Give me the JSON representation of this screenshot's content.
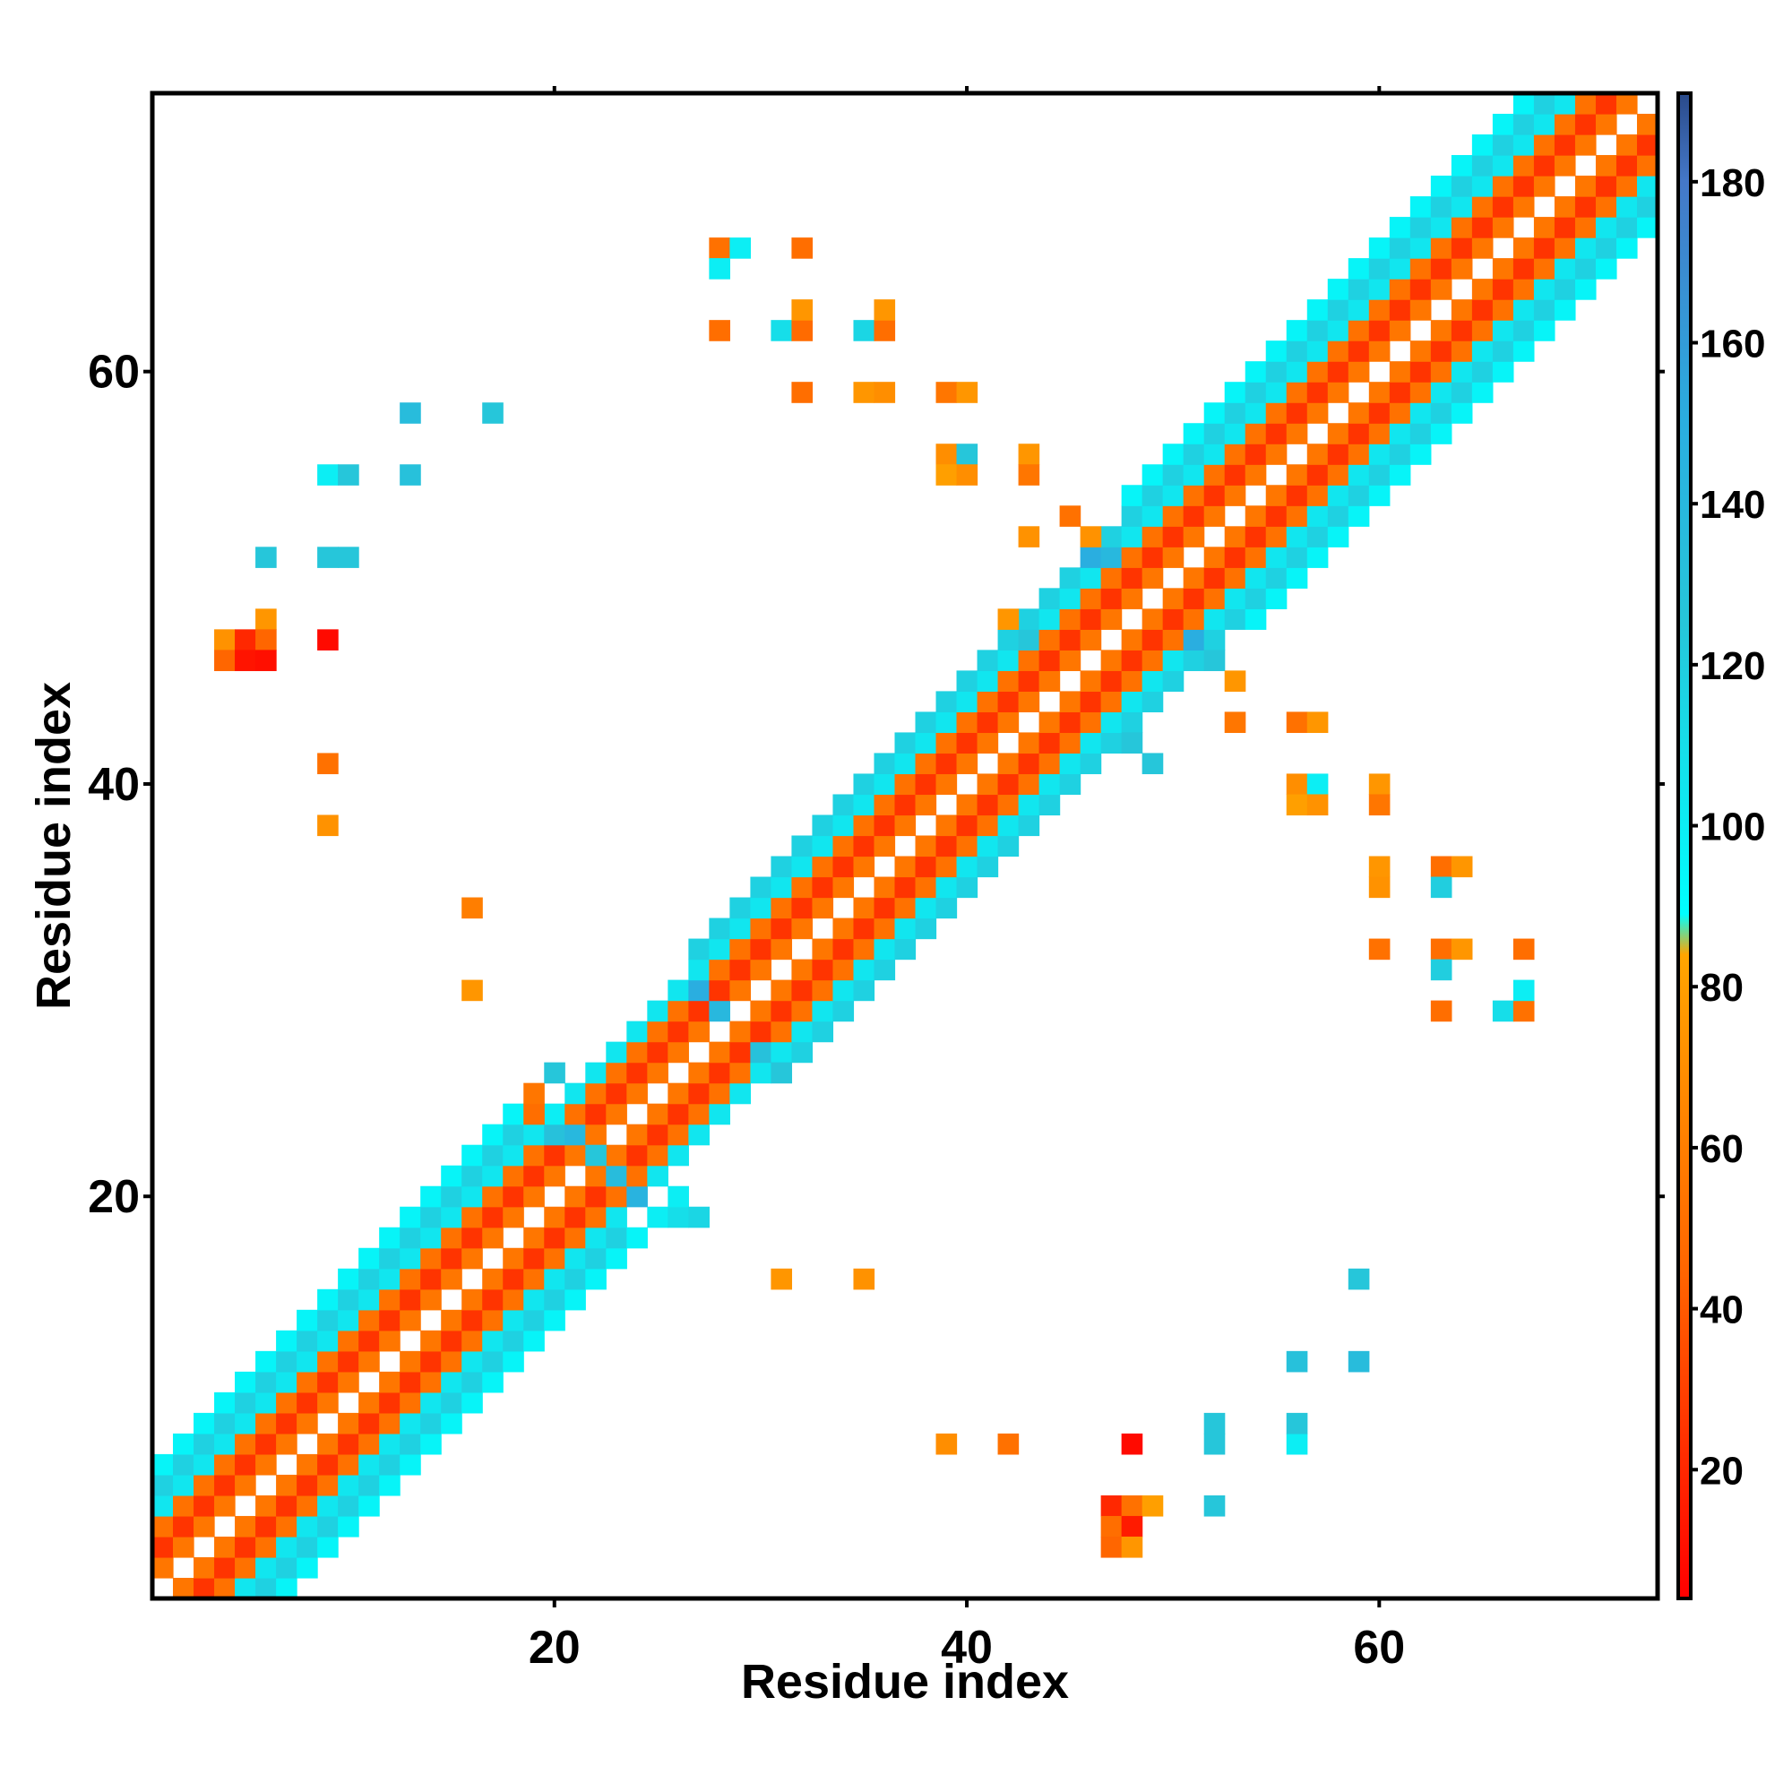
{
  "chart_data": {
    "type": "heatmap",
    "title": "",
    "xlabel": "Residue index",
    "ylabel": "Residue index",
    "xlim": [
      0.5,
      73.5
    ],
    "ylim": [
      0.5,
      73.5
    ],
    "x_ticks": [
      20,
      40,
      60
    ],
    "x_tick_labels": [
      "20",
      "40",
      "60"
    ],
    "y_ticks": [
      20,
      40,
      60
    ],
    "y_tick_labels": [
      "20",
      "40",
      "60"
    ],
    "grid": false,
    "legend": "colorbar-right",
    "colorbar": {
      "range": [
        4,
        191
      ],
      "ticks": [
        20,
        40,
        60,
        80,
        100,
        120,
        140,
        160,
        180
      ],
      "tick_labels": [
        "20",
        "40",
        "60",
        "80",
        "100",
        "120",
        "140",
        "160",
        "180"
      ]
    },
    "color_scale": [
      {
        "value": 4,
        "color": "#ff0000"
      },
      {
        "value": 45,
        "color": "#ff6600"
      },
      {
        "value": 84,
        "color": "#ffa500"
      },
      {
        "value": 89,
        "color": "#00ffff"
      },
      {
        "value": 125,
        "color": "#26c6da"
      },
      {
        "value": 150,
        "color": "#2aaee0"
      },
      {
        "value": 180,
        "color": "#4478c8"
      },
      {
        "value": 191,
        "color": "#2a4a8a"
      }
    ],
    "band": {
      "description_values": "symmetric contact band around the diagonal; value by sequence separation d",
      "by_offset": {
        "1": 55,
        "2": 25,
        "3": 52,
        "4": 105,
        "5": 118,
        "6": 96
      },
      "segments": [
        {
          "from": 1,
          "to": 18,
          "max_offset": 6
        },
        {
          "from": 18,
          "to": 27,
          "max_offset": 4
        },
        {
          "from": 27,
          "to": 48,
          "max_offset": 5
        },
        {
          "from": 48,
          "to": 73,
          "max_offset": 6
        }
      ]
    },
    "cells": [
      {
        "x": 4,
        "y": 47,
        "v": 72
      },
      {
        "x": 4,
        "y": 46,
        "v": 45
      },
      {
        "x": 5,
        "y": 47,
        "v": 20
      },
      {
        "x": 5,
        "y": 46,
        "v": 12
      },
      {
        "x": 6,
        "y": 48,
        "v": 75
      },
      {
        "x": 6,
        "y": 47,
        "v": 45
      },
      {
        "x": 6,
        "y": 46,
        "v": 10
      },
      {
        "x": 9,
        "y": 47,
        "v": 8
      },
      {
        "x": 9,
        "y": 41,
        "v": 52
      },
      {
        "x": 9,
        "y": 38,
        "v": 72
      },
      {
        "x": 16,
        "y": 34,
        "v": 60
      },
      {
        "x": 16,
        "y": 30,
        "v": 75
      },
      {
        "x": 6,
        "y": 51,
        "v": 125
      },
      {
        "x": 9,
        "y": 51,
        "v": 125
      },
      {
        "x": 10,
        "y": 51,
        "v": 125
      },
      {
        "x": 9,
        "y": 55,
        "v": 100
      },
      {
        "x": 10,
        "y": 55,
        "v": 125
      },
      {
        "x": 13,
        "y": 55,
        "v": 130
      },
      {
        "x": 13,
        "y": 58,
        "v": 135
      },
      {
        "x": 17,
        "y": 58,
        "v": 125
      },
      {
        "x": 28,
        "y": 66,
        "v": 52
      },
      {
        "x": 29,
        "y": 66,
        "v": 100
      },
      {
        "x": 28,
        "y": 65,
        "v": 100
      },
      {
        "x": 32,
        "y": 66,
        "v": 50
      },
      {
        "x": 28,
        "y": 62,
        "v": 50
      },
      {
        "x": 31,
        "y": 62,
        "v": 110
      },
      {
        "x": 32,
        "y": 62,
        "v": 48
      },
      {
        "x": 32,
        "y": 63,
        "v": 75
      },
      {
        "x": 35,
        "y": 62,
        "v": 115
      },
      {
        "x": 36,
        "y": 62,
        "v": 50
      },
      {
        "x": 36,
        "y": 63,
        "v": 75
      },
      {
        "x": 32,
        "y": 59,
        "v": 50
      },
      {
        "x": 35,
        "y": 59,
        "v": 75
      },
      {
        "x": 36,
        "y": 59,
        "v": 70
      },
      {
        "x": 39,
        "y": 59,
        "v": 55
      },
      {
        "x": 40,
        "y": 59,
        "v": 75
      },
      {
        "x": 39,
        "y": 56,
        "v": 70
      },
      {
        "x": 40,
        "y": 56,
        "v": 125
      },
      {
        "x": 39,
        "y": 55,
        "v": 80
      },
      {
        "x": 40,
        "y": 55,
        "v": 70
      },
      {
        "x": 43,
        "y": 56,
        "v": 75
      },
      {
        "x": 43,
        "y": 55,
        "v": 55
      },
      {
        "x": 43,
        "y": 52,
        "v": 72
      },
      {
        "x": 53,
        "y": 43,
        "v": 55
      },
      {
        "x": 56,
        "y": 43,
        "v": 52
      },
      {
        "x": 57,
        "y": 43,
        "v": 75
      },
      {
        "x": 56,
        "y": 40,
        "v": 70
      },
      {
        "x": 57,
        "y": 40,
        "v": 100
      },
      {
        "x": 56,
        "y": 39,
        "v": 80
      },
      {
        "x": 57,
        "y": 39,
        "v": 72
      },
      {
        "x": 60,
        "y": 40,
        "v": 75
      },
      {
        "x": 60,
        "y": 39,
        "v": 55
      },
      {
        "x": 60,
        "y": 36,
        "v": 75
      },
      {
        "x": 60,
        "y": 35,
        "v": 72
      },
      {
        "x": 63,
        "y": 36,
        "v": 50
      },
      {
        "x": 64,
        "y": 36,
        "v": 75
      },
      {
        "x": 63,
        "y": 35,
        "v": 120
      },
      {
        "x": 60,
        "y": 32,
        "v": 52
      },
      {
        "x": 63,
        "y": 32,
        "v": 50
      },
      {
        "x": 64,
        "y": 32,
        "v": 75
      },
      {
        "x": 67,
        "y": 32,
        "v": 50
      },
      {
        "x": 63,
        "y": 31,
        "v": 120
      },
      {
        "x": 63,
        "y": 29,
        "v": 50
      },
      {
        "x": 66,
        "y": 29,
        "v": 110
      },
      {
        "x": 67,
        "y": 29,
        "v": 52
      },
      {
        "x": 67,
        "y": 30,
        "v": 100
      },
      {
        "x": 31,
        "y": 16,
        "v": 75
      },
      {
        "x": 35,
        "y": 16,
        "v": 72
      },
      {
        "x": 39,
        "y": 8,
        "v": 70
      },
      {
        "x": 42,
        "y": 8,
        "v": 52
      },
      {
        "x": 48,
        "y": 8,
        "v": 8
      },
      {
        "x": 52,
        "y": 8,
        "v": 125
      },
      {
        "x": 52,
        "y": 9,
        "v": 125
      },
      {
        "x": 56,
        "y": 8,
        "v": 100
      },
      {
        "x": 56,
        "y": 9,
        "v": 125
      },
      {
        "x": 56,
        "y": 12,
        "v": 130
      },
      {
        "x": 59,
        "y": 12,
        "v": 135
      },
      {
        "x": 59,
        "y": 16,
        "v": 125
      },
      {
        "x": 47,
        "y": 5,
        "v": 20
      },
      {
        "x": 48,
        "y": 5,
        "v": 52
      },
      {
        "x": 49,
        "y": 5,
        "v": 80
      },
      {
        "x": 47,
        "y": 4,
        "v": 50
      },
      {
        "x": 48,
        "y": 4,
        "v": 15
      },
      {
        "x": 47,
        "y": 3,
        "v": 45
      },
      {
        "x": 48,
        "y": 3,
        "v": 75
      },
      {
        "x": 52,
        "y": 5,
        "v": 125
      },
      {
        "x": 19,
        "y": 24,
        "v": 50
      },
      {
        "x": 20,
        "y": 24,
        "v": 100
      },
      {
        "x": 19,
        "y": 25,
        "v": 55
      },
      {
        "x": 20,
        "y": 26,
        "v": 125
      },
      {
        "x": 20,
        "y": 23,
        "v": 130
      },
      {
        "x": 21,
        "y": 23,
        "v": 140
      },
      {
        "x": 22,
        "y": 22,
        "v": 125
      },
      {
        "x": 23,
        "y": 21,
        "v": 135
      },
      {
        "x": 24,
        "y": 20,
        "v": 145
      },
      {
        "x": 25,
        "y": 19,
        "v": 100
      },
      {
        "x": 26,
        "y": 19,
        "v": 110
      },
      {
        "x": 26,
        "y": 20,
        "v": 100
      },
      {
        "x": 27,
        "y": 19,
        "v": 115
      },
      {
        "x": 46,
        "y": 51,
        "v": 150
      },
      {
        "x": 47,
        "y": 51,
        "v": 140
      },
      {
        "x": 51,
        "y": 47,
        "v": 150
      },
      {
        "x": 52,
        "y": 46,
        "v": 125
      },
      {
        "x": 53,
        "y": 45,
        "v": 75
      },
      {
        "x": 46,
        "y": 52,
        "v": 72
      },
      {
        "x": 45,
        "y": 53,
        "v": 52
      },
      {
        "x": 42,
        "y": 48,
        "v": 75
      },
      {
        "x": 43,
        "y": 47,
        "v": 125
      },
      {
        "x": 48,
        "y": 42,
        "v": 125
      },
      {
        "x": 49,
        "y": 41,
        "v": 125
      },
      {
        "x": 27,
        "y": 30,
        "v": 150
      },
      {
        "x": 28,
        "y": 29,
        "v": 140
      },
      {
        "x": 30,
        "y": 27,
        "v": 130
      },
      {
        "x": 31,
        "y": 26,
        "v": 125
      }
    ]
  }
}
